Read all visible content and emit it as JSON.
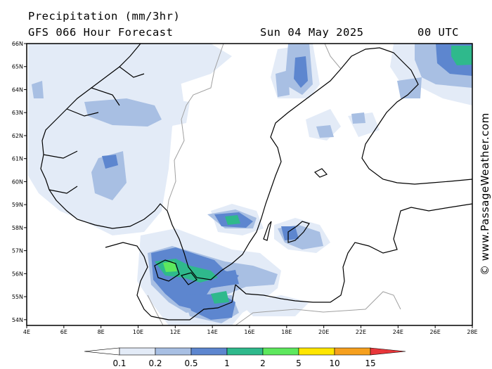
{
  "header": {
    "title": "Precipitation (mm/3hr)",
    "subtitle": "GFS 066 Hour Forecast",
    "date": "Sun 04 May 2025",
    "time": "00 UTC"
  },
  "credit": "© www.PassageWeather.com",
  "map": {
    "lon_range": [
      4,
      28
    ],
    "lat_range": [
      53.75,
      66
    ],
    "lat_labels": [
      "66N",
      "65N",
      "64N",
      "63N",
      "62N",
      "61N",
      "60N",
      "59N",
      "58N",
      "57N",
      "56N",
      "55N",
      "54N"
    ],
    "lat_values": [
      66,
      65,
      64,
      63,
      62,
      61,
      60,
      59,
      58,
      57,
      56,
      55,
      54
    ],
    "lon_labels": [
      "4E",
      "6E",
      "8E",
      "10E",
      "12E",
      "14E",
      "16E",
      "18E",
      "20E",
      "22E",
      "24E",
      "26E",
      "28E"
    ],
    "lon_values": [
      4,
      6,
      8,
      10,
      12,
      14,
      16,
      18,
      20,
      22,
      24,
      26,
      28
    ],
    "water_color": "#ffffff",
    "coast_color": "#000000",
    "border_color": "#a0a0a0"
  },
  "colorbar": {
    "labels": [
      "0.1",
      "0.2",
      "0.5",
      "1",
      "2",
      "5",
      "10",
      "15"
    ],
    "colors": [
      "#ffffff",
      "#e3ebf7",
      "#a8bfe3",
      "#5d86cf",
      "#2fb98c",
      "#5de85d",
      "#ffe600",
      "#f6a01e",
      "#e8363a"
    ]
  }
}
